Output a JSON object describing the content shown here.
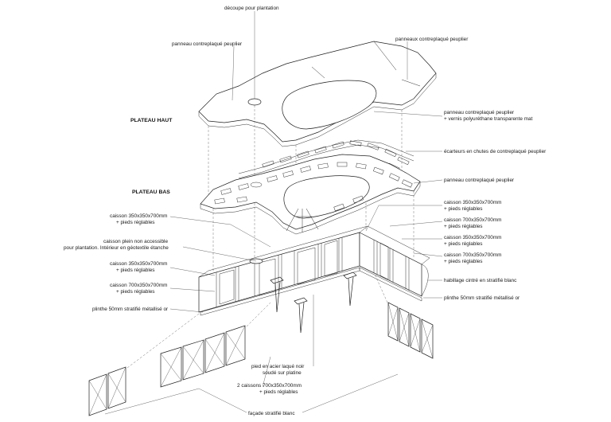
{
  "labels": {
    "top_cutout": "découpe pour plantation",
    "panel_left": "panneau contreplaqué peuplier",
    "panel_right": "panneaux contreplaqué peuplier",
    "plateau_haut": "PLATEAU HAUT",
    "panel_varnish_1": "panneau contreplaqué peuplier",
    "panel_varnish_2": "+ vernis polyuréthane transparente mat",
    "spacers": "écarteurs en chutes de contreplaqué peuplier",
    "panel_bottom": "panneau contreplaqué peuplier",
    "plateau_bas": "PLATEAU BAS",
    "box_l1_1": "caisson 350x350x700mm",
    "box_l1_2": "+ pieds réglables",
    "box_plein_1": "caisson plein non accessible",
    "box_plein_2": "pour plantation. Intérieur en géotextile étanche",
    "box_l2_1": "caisson 350x350x700mm",
    "box_l2_2": "+ pieds réglables",
    "box_l3_1": "caisson 700x350x700mm",
    "box_l3_2": "+ pieds réglables",
    "plinthe_left": "plinthe 50mm stratifié métallisé or",
    "box_r1_1": "caisson 350x350x700mm",
    "box_r1_2": "+ pieds réglables",
    "box_r2_1": "caisson 700x350x700mm",
    "box_r2_2": "+ pieds réglables",
    "box_r3_1": "caisson 350x350x700mm",
    "box_r3_2": "+ pieds réglables",
    "box_r4_1": "caisson 700x350x700mm",
    "box_r4_2": "+ pieds réglables",
    "habillage": "habillage cintré en stratifié blanc",
    "plinthe_right": "plinthe 50mm stratifié métallisé or",
    "pied_1": "pied en acier laqué noir",
    "pied_2": "soudé sur platine",
    "two_boxes_1": "2 caissons 700x350x700mm",
    "two_boxes_2": "+ pieds réglables",
    "facade": "façade stratifié blanc"
  }
}
